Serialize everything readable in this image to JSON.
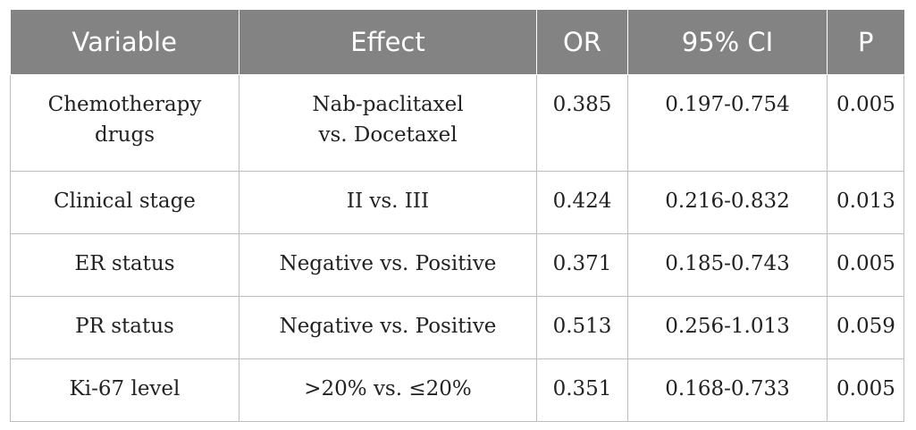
{
  "table": {
    "headers": [
      "Variable",
      "Effect",
      "OR",
      "95% CI",
      "P"
    ],
    "rows": [
      {
        "variable": [
          "Chemotherapy",
          "drugs"
        ],
        "effect": [
          "Nab-paclitaxel",
          "vs. Docetaxel"
        ],
        "or": "0.385",
        "ci": "0.197-0.754",
        "p": "0.005"
      },
      {
        "variable": [
          "Clinical stage"
        ],
        "effect": [
          "II vs. III"
        ],
        "or": "0.424",
        "ci": "0.216-0.832",
        "p": "0.013"
      },
      {
        "variable": [
          "ER status"
        ],
        "effect": [
          "Negative vs. Positive"
        ],
        "or": "0.371",
        "ci": "0.185-0.743",
        "p": "0.005"
      },
      {
        "variable": [
          "PR status"
        ],
        "effect": [
          "Negative vs. Positive"
        ],
        "or": "0.513",
        "ci": "0.256-1.013",
        "p": "0.059"
      },
      {
        "variable": [
          "Ki-67 level"
        ],
        "effect": [
          ">20% vs. ≤20%"
        ],
        "or": "0.351",
        "ci": "0.168-0.733",
        "p": "0.005"
      }
    ]
  },
  "colors": {
    "header_background": "#838383",
    "header_text": "#ffffff",
    "border": "#bdbdbd",
    "body_text": "#222222"
  }
}
